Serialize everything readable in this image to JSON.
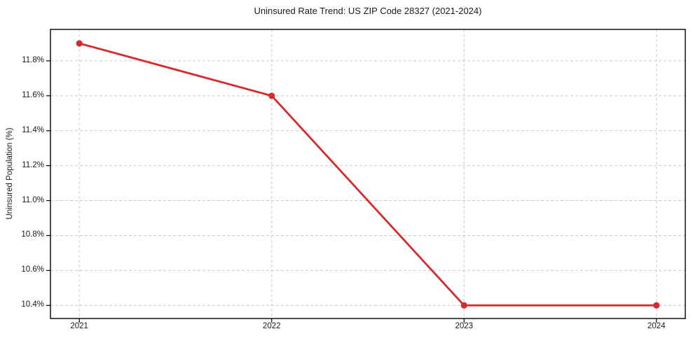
{
  "chart_data": {
    "type": "line",
    "title": "Uninsured Rate Trend: US ZIP Code 28327 (2021-2024)",
    "xlabel": "",
    "ylabel": "Uninsured Population (%)",
    "x": [
      2021,
      2022,
      2023,
      2024
    ],
    "y": [
      11.9,
      11.6,
      10.4,
      10.4
    ],
    "xlim": [
      2020.85,
      2024.15
    ],
    "ylim": [
      10.325,
      11.98
    ],
    "xtick_values": [
      2021,
      2022,
      2023,
      2024
    ],
    "xtick_labels": [
      "2021",
      "2022",
      "2023",
      "2024"
    ],
    "ytick_values": [
      10.4,
      10.6,
      10.8,
      11.0,
      11.2,
      11.4,
      11.6,
      11.8
    ],
    "ytick_labels": [
      "10.4%",
      "10.6%",
      "10.8%",
      "11.0%",
      "11.2%",
      "11.4%",
      "11.6%",
      "11.8%"
    ],
    "grid": true,
    "legend": false,
    "colors": {
      "line": "#d62b2e",
      "marker": "#d62b2e",
      "grid": "#c9c9c9",
      "axis": "#000000",
      "text": "#1a1a1a",
      "background": "#ffffff"
    }
  }
}
